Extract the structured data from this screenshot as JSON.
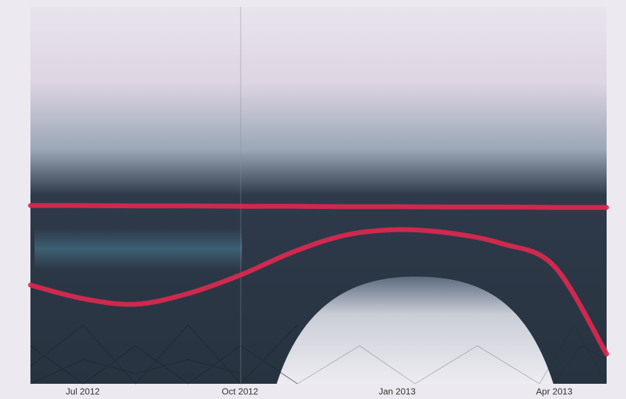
{
  "chart_data": {
    "type": "line",
    "x": [
      "2012-06",
      "2012-07",
      "2012-08",
      "2012-09",
      "2012-10",
      "2012-11",
      "2012-12",
      "2013-01",
      "2013-02",
      "2013-03",
      "2013-04",
      "2013-05"
    ],
    "series": [
      {
        "color": "#e0284f",
        "values": [
          47.3,
          47.3,
          47.2,
          47.2,
          47.1,
          47.1,
          47.0,
          47.0,
          46.9,
          46.9,
          46.8,
          46.8
        ]
      },
      {
        "color": "#e0284f",
        "values": [
          26.2,
          22.6,
          21.1,
          23.9,
          28.8,
          34.9,
          39.4,
          40.9,
          40.0,
          37.2,
          31.2,
          7.9
        ]
      }
    ],
    "xlim": [
      "2012-06",
      "2013-05"
    ],
    "xticks": [
      {
        "value": "2012-07",
        "label": "Jul 2012"
      },
      {
        "value": "2012-10",
        "label": "Oct 2012"
      },
      {
        "value": "2013-01",
        "label": "Jan 2013"
      },
      {
        "value": "2013-04",
        "label": "Apr 2013"
      }
    ],
    "ylim": [
      0,
      100
    ]
  }
}
